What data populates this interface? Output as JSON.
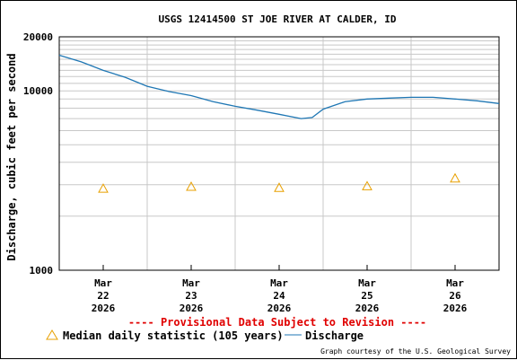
{
  "chart_data": {
    "type": "line",
    "title": "USGS 12414500 ST JOE RIVER AT CALDER, ID",
    "ylabel": "Discharge, cubic feet per second",
    "xlabel": "",
    "y_scale": "log",
    "ylim": [
      1000,
      20000
    ],
    "y_tick_labels": [
      "1000",
      "10000",
      "20000"
    ],
    "x_range": [
      "2026-03-21 12:00",
      "2026-03-26 12:00"
    ],
    "x_ticks": [
      {
        "month": "Mar",
        "day": "22",
        "year": "2026",
        "date": "2026-03-22"
      },
      {
        "month": "Mar",
        "day": "23",
        "year": "2026",
        "date": "2026-03-23"
      },
      {
        "month": "Mar",
        "day": "24",
        "year": "2026",
        "date": "2026-03-24"
      },
      {
        "month": "Mar",
        "day": "25",
        "year": "2026",
        "date": "2026-03-25"
      },
      {
        "month": "Mar",
        "day": "26",
        "year": "2026",
        "date": "2026-03-26"
      }
    ],
    "grid": true,
    "series": [
      {
        "name": "Discharge",
        "color": "#1f77b4",
        "x": [
          "2026-03-21 12:00",
          "2026-03-21 18:00",
          "2026-03-22 00:00",
          "2026-03-22 06:00",
          "2026-03-22 12:00",
          "2026-03-22 18:00",
          "2026-03-23 00:00",
          "2026-03-23 06:00",
          "2026-03-23 12:00",
          "2026-03-23 18:00",
          "2026-03-24 00:00",
          "2026-03-24 06:00",
          "2026-03-24 09:00",
          "2026-03-24 12:00",
          "2026-03-24 18:00",
          "2026-03-25 00:00",
          "2026-03-25 06:00",
          "2026-03-25 12:00",
          "2026-03-25 18:00",
          "2026-03-26 00:00",
          "2026-03-26 06:00",
          "2026-03-26 12:00"
        ],
        "values": [
          15800,
          14500,
          13000,
          11900,
          10600,
          9900,
          9400,
          8700,
          8200,
          7800,
          7400,
          7000,
          7100,
          7900,
          8700,
          9000,
          9100,
          9200,
          9200,
          9000,
          8800,
          8500
        ]
      },
      {
        "name": "Median daily statistic (105 years)",
        "color": "#e8a000",
        "marker": "triangle",
        "x": [
          "2026-03-22",
          "2026-03-23",
          "2026-03-24",
          "2026-03-25",
          "2026-03-26"
        ],
        "values": [
          2850,
          2920,
          2880,
          2940,
          3250
        ]
      }
    ]
  },
  "provisional_note": "---- Provisional Data Subject to Revision ----",
  "legend": {
    "median_label": "Median daily statistic (105 years)",
    "discharge_label": "Discharge"
  },
  "credit": "Graph courtesy of the U.S. Geological Survey"
}
